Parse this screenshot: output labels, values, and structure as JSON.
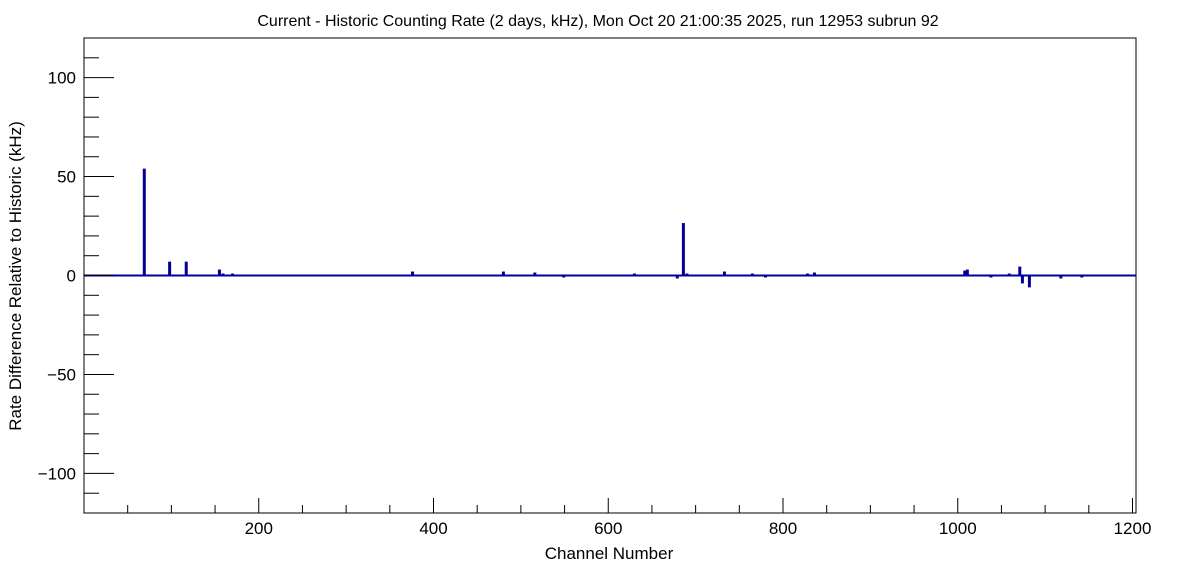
{
  "chart_data": {
    "type": "bar",
    "title": "Current - Historic Counting Rate (2 days, kHz), Mon Oct 20 21:00:35 2025, run 12953 subrun 92",
    "xlabel": "Channel Number",
    "ylabel": "Rate Difference Relative to Historic (kHz)",
    "xlim": [
      0,
      1204
    ],
    "ylim": [
      -120,
      120
    ],
    "x_ticks": [
      200,
      400,
      600,
      800,
      1000,
      1200
    ],
    "y_ticks": [
      -100,
      -50,
      0,
      50,
      100
    ],
    "x_tick_labels": [
      "200",
      "400",
      "600",
      "800",
      "1000",
      "1200"
    ],
    "y_tick_labels": [
      "−100",
      "−50",
      "0",
      "50",
      "100"
    ],
    "grid": false,
    "legend": "none",
    "series": [
      {
        "color": "#000099",
        "x": [
          69,
          98,
          117,
          155,
          159,
          170,
          376,
          480,
          516,
          549,
          630,
          679,
          686,
          690,
          733,
          765,
          780,
          828,
          836,
          1008,
          1011,
          1038,
          1059,
          1071,
          1074,
          1082,
          1118,
          1142
        ],
        "values": [
          54,
          7,
          7,
          3,
          1,
          1,
          2,
          2,
          1.5,
          -1,
          1,
          -1.5,
          26.5,
          1,
          2,
          1,
          -1,
          1,
          1.5,
          2.5,
          3,
          -1,
          1,
          4.5,
          -4,
          -6,
          -1.5,
          -1
        ]
      }
    ]
  }
}
